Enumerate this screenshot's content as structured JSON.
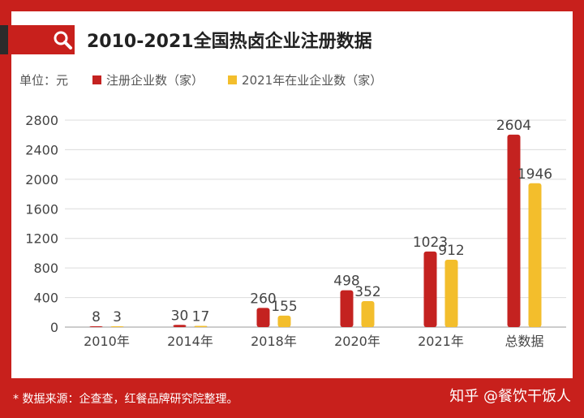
{
  "header": {
    "title": "2010-2021全国热卤企业注册数据",
    "unit": "单位：元"
  },
  "footer": {
    "source": "* 数据来源：企查查，红餐品牌研究院整理。",
    "watermark": "知乎 @餐饮干饭人"
  },
  "colors": {
    "frame": "#c8201c",
    "series1": "#c42220",
    "series2": "#f3be2c",
    "grid": "#dcdcdc"
  },
  "chart_data": {
    "type": "bar",
    "categories": [
      "2010年",
      "2014年",
      "2018年",
      "2020年",
      "2021年",
      "总数据"
    ],
    "series": [
      {
        "name": "注册企业数（家）",
        "values": [
          8,
          30,
          260,
          498,
          1023,
          2604
        ]
      },
      {
        "name": "2021年在业企业数（家）",
        "values": [
          3,
          17,
          155,
          352,
          912,
          1946
        ]
      }
    ],
    "yticks": [
      0,
      400,
      800,
      1200,
      1600,
      2000,
      2400,
      2800
    ],
    "ylim": [
      0,
      2800
    ],
    "grid": true,
    "legend": "top"
  }
}
